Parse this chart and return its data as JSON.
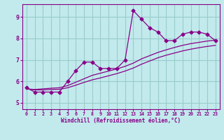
{
  "xlabel": "Windchill (Refroidissement éolien,°C)",
  "ylabel": "",
  "xlim": [
    -0.5,
    23.5
  ],
  "ylim": [
    4.7,
    9.6
  ],
  "xticks": [
    0,
    1,
    2,
    3,
    4,
    5,
    6,
    7,
    8,
    9,
    10,
    11,
    12,
    13,
    14,
    15,
    16,
    17,
    18,
    19,
    20,
    21,
    22,
    23
  ],
  "yticks": [
    5,
    6,
    7,
    8,
    9
  ],
  "bg_color": "#c2eaec",
  "line_color": "#880088",
  "grid_color": "#99cccc",
  "series": [
    {
      "x": [
        0,
        1,
        2,
        3,
        4,
        5,
        6,
        7,
        8,
        9,
        10,
        11,
        12,
        13,
        14,
        15,
        16,
        17,
        18,
        19,
        20,
        21,
        22,
        23
      ],
      "y": [
        5.7,
        5.5,
        5.5,
        5.5,
        5.5,
        6.0,
        6.5,
        6.9,
        6.9,
        6.6,
        6.6,
        6.6,
        7.0,
        9.3,
        8.9,
        8.5,
        8.3,
        7.9,
        7.9,
        8.2,
        8.3,
        8.3,
        8.2,
        7.9
      ],
      "marker": "D",
      "markersize": 2.5
    },
    {
      "x": [
        0,
        1,
        2,
        3,
        4,
        5,
        6,
        7,
        8,
        9,
        10,
        11,
        12,
        13,
        14,
        15,
        16,
        17,
        18,
        19,
        20,
        21,
        22,
        23
      ],
      "y": [
        5.65,
        5.62,
        5.65,
        5.68,
        5.7,
        5.8,
        5.96,
        6.12,
        6.28,
        6.38,
        6.48,
        6.58,
        6.7,
        6.85,
        7.05,
        7.2,
        7.35,
        7.47,
        7.58,
        7.68,
        7.76,
        7.82,
        7.88,
        7.92
      ],
      "marker": null,
      "markersize": 0
    },
    {
      "x": [
        0,
        1,
        2,
        3,
        4,
        5,
        6,
        7,
        8,
        9,
        10,
        11,
        12,
        13,
        14,
        15,
        16,
        17,
        18,
        19,
        20,
        21,
        22,
        23
      ],
      "y": [
        5.65,
        5.6,
        5.6,
        5.62,
        5.63,
        5.7,
        5.82,
        5.95,
        6.07,
        6.16,
        6.26,
        6.36,
        6.48,
        6.62,
        6.8,
        6.95,
        7.1,
        7.22,
        7.32,
        7.42,
        7.5,
        7.57,
        7.63,
        7.68
      ],
      "marker": null,
      "markersize": 0
    }
  ]
}
